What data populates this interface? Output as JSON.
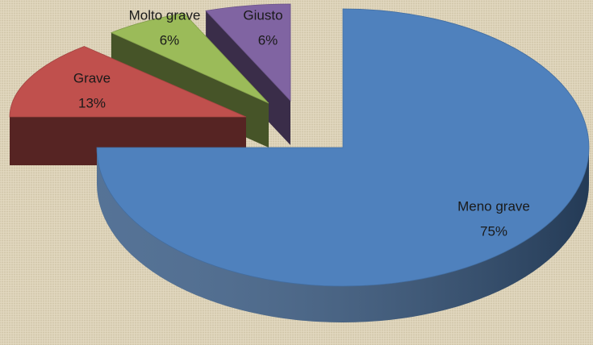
{
  "chart_data": {
    "type": "pie",
    "categories": [
      "Meno grave",
      "Grave",
      "Molto grave",
      "Giusto"
    ],
    "values": [
      75,
      13,
      6,
      6
    ],
    "value_labels": [
      "75%",
      "13%",
      "6%",
      "6%"
    ],
    "colors": [
      "#4f81bd",
      "#c0504d",
      "#9bbb59",
      "#8064a2"
    ]
  }
}
